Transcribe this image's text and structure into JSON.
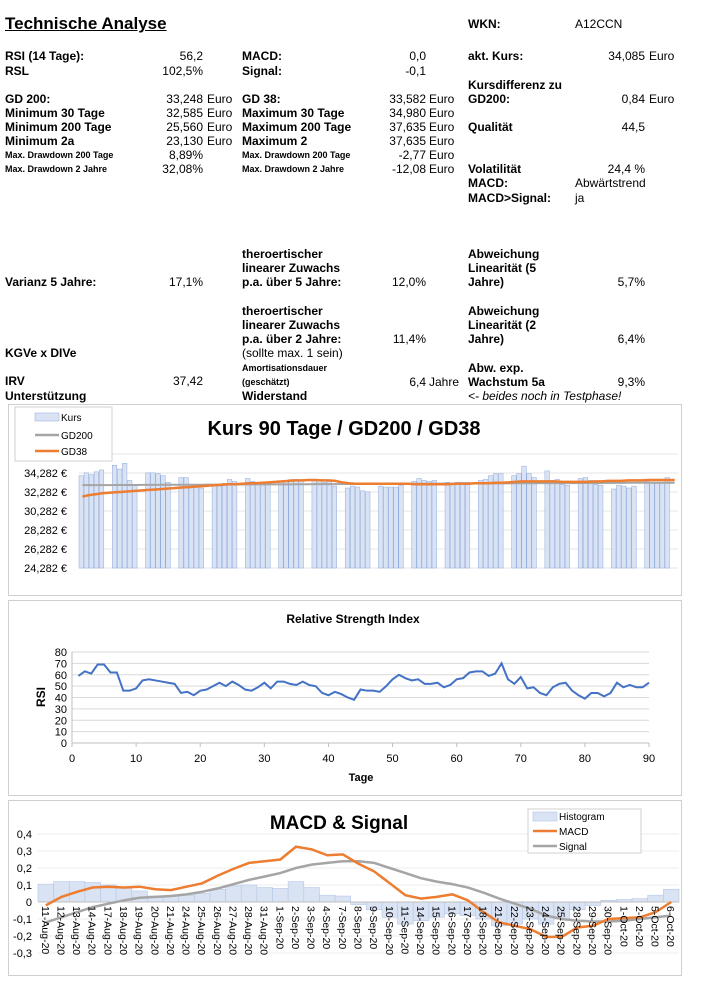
{
  "title": "Technische Analyse",
  "fields": [
    {
      "col": 1,
      "label": "RSI (14 Tage):",
      "value": "56,2"
    },
    {
      "col": 1,
      "label": "RSL",
      "value": "102,5%"
    },
    {
      "col": 1,
      "label": "GD 200:",
      "value": "33,248",
      "unit": "Euro"
    },
    {
      "col": 1,
      "label": "Minimum 30 Tage",
      "value": "32,585",
      "unit": "Euro"
    },
    {
      "col": 1,
      "label": "Minimum 200 Tage",
      "value": "25,560",
      "unit": "Euro"
    },
    {
      "col": 1,
      "label": "Minimum 2a",
      "value": "23,130",
      "unit": "Euro"
    },
    {
      "col": 1,
      "label": "Max. Drawdown 200 Tage",
      "value": "8,89%",
      "small": true
    },
    {
      "col": 1,
      "label": "Max. Drawdown 2 Jahre",
      "value": "32,08%",
      "small": true
    },
    {
      "col": 1,
      "label": "Varianz 5 Jahre:",
      "value": "17,1%"
    },
    {
      "col": 1,
      "label": "KGVe x DIVe",
      "value": ""
    },
    {
      "col": 1,
      "label": "IRV",
      "value": "37,42"
    },
    {
      "col": 1,
      "label": "Unterstützung",
      "value": ""
    },
    {
      "col": 2,
      "label": "MACD:",
      "value": "0,0"
    },
    {
      "col": 2,
      "label": "Signal:",
      "value": "-0,1"
    },
    {
      "col": 2,
      "label": "GD 38:",
      "value": "33,582",
      "unit": "Euro"
    },
    {
      "col": 2,
      "label": "Maximum 30 Tage",
      "value": "34,980",
      "unit": "Euro"
    },
    {
      "col": 2,
      "label": "Maximum 200 Tage",
      "value": "37,635",
      "unit": "Euro"
    },
    {
      "col": 2,
      "label": "Maximum 2",
      "value": "37,635",
      "unit": "Euro"
    },
    {
      "col": 2,
      "label": "Max. Drawdown 200 Tage",
      "value": "-2,77",
      "unit": "Euro",
      "small": true
    },
    {
      "col": 2,
      "label": "Max. Drawdown 2 Jahre",
      "value": "-12,08",
      "unit": "Euro",
      "small": true
    },
    {
      "col": 2,
      "label": "theroertischer\nlinearer Zuwachs\np.a. über 5 Jahre:",
      "value": "12,0%"
    },
    {
      "col": 2,
      "label": "theroertischer\nlinearer Zuwachs\np.a. über 2 Jahre:",
      "value": "11,4%"
    },
    {
      "col": 2,
      "label": "(sollte max. 1 sein)",
      "value": "",
      "plain": true
    },
    {
      "col": 2,
      "label": "Amortisationsdauer\n(geschätzt)",
      "value": "6,4",
      "unit": "Jahre",
      "small": true
    },
    {
      "col": 2,
      "label": "Widerstand",
      "value": ""
    },
    {
      "col": 3,
      "label": "WKN:",
      "value": "A12CCN",
      "left": true
    },
    {
      "col": 3,
      "label": "akt. Kurs:",
      "value": "34,085",
      "unit": "Euro"
    },
    {
      "col": 3,
      "label": "Kursdifferenz zu\nGD200:",
      "value": "0,84",
      "unit": "Euro"
    },
    {
      "col": 3,
      "label": "Qualität",
      "value": "44,5"
    },
    {
      "col": 3,
      "label": "Volatilität",
      "value": "24,4 %"
    },
    {
      "col": 3,
      "label": "MACD:",
      "value": "Abwärtstrend",
      "left": true
    },
    {
      "col": 3,
      "label": "MACD>Signal:",
      "value": "ja",
      "left": true
    },
    {
      "col": 3,
      "label": "Abweichung\nLinearität (5\nJahre)",
      "value": "5,7%"
    },
    {
      "col": 3,
      "label": "Abweichung\nLinearität (2\nJahre)",
      "value": "6,4%"
    },
    {
      "col": 3,
      "label": "Abw. exp.\nWachstum 5a",
      "value": "9,3%"
    },
    {
      "col": 3,
      "label": "<- beides noch in Testphase!",
      "value": "",
      "italic": true
    }
  ],
  "chart_data": [
    {
      "type": "bar+line",
      "title": "Kurs 90 Tage / GD200 / GD38",
      "ylim": [
        24.282,
        36.282
      ],
      "yticks": [
        "24,282 €",
        "26,282 €",
        "28,282 €",
        "30,282 €",
        "32,282 €",
        "34,282 €"
      ],
      "legend": "top-left",
      "grid": true,
      "colors": {
        "Kurs": "#dae3f3",
        "GD200": "#a5a5a5",
        "GD38": "#ed7d31"
      },
      "series": [
        {
          "name": "Kurs",
          "type": "bar",
          "values": [
            34.0,
            34.3,
            34.1,
            34.4,
            34.6,
            35.1,
            34.7,
            35.3,
            33.5,
            33.0,
            34.3,
            34.3,
            34.2,
            34.0,
            33.3,
            33.8,
            33.8,
            32.9,
            33.0,
            32.7,
            32.9,
            32.9,
            33.2,
            33.6,
            33.4,
            33.7,
            33.4,
            33.2,
            33.0,
            33.3,
            33.3,
            33.4,
            33.6,
            33.6,
            33.5,
            33.5,
            33.6,
            33.3,
            33.4,
            32.9,
            32.7,
            32.9,
            32.8,
            32.4,
            32.3,
            32.9,
            32.8,
            32.8,
            32.8,
            33.0,
            33.4,
            33.7,
            33.5,
            33.4,
            33.5,
            33.3,
            33.2,
            33.3,
            33.3,
            33.3,
            33.5,
            33.6,
            34.0,
            34.2,
            34.2,
            34.0,
            34.2,
            35.0,
            34.2,
            33.8,
            34.5,
            33.5,
            33.6,
            33.1,
            33.0,
            33.7,
            33.8,
            33.5,
            33.1,
            33.0,
            32.6,
            33.0,
            32.9,
            32.7,
            32.9,
            33.4,
            33.3,
            33.3,
            33.3,
            33.8
          ]
        },
        {
          "name": "GD200",
          "type": "line",
          "values": [
            33.0,
            33.0,
            33.01,
            33.01,
            33.01,
            33.02,
            33.02,
            33.02,
            33.02,
            33.03,
            33.03,
            33.03,
            33.04,
            33.04,
            33.04,
            33.05,
            33.05,
            33.05,
            33.05,
            33.06,
            33.06,
            33.06,
            33.07,
            33.07,
            33.07,
            33.08,
            33.08,
            33.08,
            33.08,
            33.09,
            33.09,
            33.09,
            33.1,
            33.1,
            33.1,
            33.11,
            33.11,
            33.11,
            33.11,
            33.12,
            33.12,
            33.12,
            33.13,
            33.13,
            33.13,
            33.14,
            33.14,
            33.14,
            33.14,
            33.15,
            33.15,
            33.15,
            33.16,
            33.16,
            33.16,
            33.17,
            33.17,
            33.17,
            33.17,
            33.18,
            33.18,
            33.18,
            33.19,
            33.19,
            33.19,
            33.2,
            33.2,
            33.2,
            33.2,
            33.21,
            33.21,
            33.21,
            33.22,
            33.22,
            33.22,
            33.23,
            33.23,
            33.23,
            33.23,
            33.24,
            33.24,
            33.24,
            33.25,
            33.25,
            33.25,
            33.25,
            33.25,
            33.25,
            33.25,
            33.25
          ]
        },
        {
          "name": "GD38",
          "type": "line",
          "values": [
            31.8,
            31.95,
            32.05,
            32.15,
            32.2,
            32.25,
            32.3,
            32.35,
            32.4,
            32.45,
            32.5,
            32.55,
            32.6,
            32.65,
            32.7,
            32.75,
            32.8,
            32.85,
            32.9,
            32.95,
            33.0,
            33.05,
            33.1,
            33.1,
            33.15,
            33.2,
            33.2,
            33.25,
            33.3,
            33.35,
            33.4,
            33.45,
            33.5,
            33.5,
            33.55,
            33.55,
            33.5,
            33.5,
            33.45,
            33.3,
            33.2,
            33.15,
            33.15,
            33.15,
            33.15,
            33.15,
            33.15,
            33.15,
            33.15,
            33.15,
            33.1,
            33.1,
            33.1,
            33.1,
            33.1,
            33.1,
            33.15,
            33.15,
            33.15,
            33.2,
            33.2,
            33.2,
            33.25,
            33.25,
            33.3,
            33.35,
            33.4,
            33.4,
            33.4,
            33.4,
            33.4,
            33.4,
            33.35,
            33.35,
            33.35,
            33.35,
            33.35,
            33.4,
            33.4,
            33.45,
            33.45,
            33.45,
            33.5,
            33.5,
            33.5,
            33.55,
            33.55,
            33.55,
            33.55,
            33.55
          ]
        }
      ]
    },
    {
      "type": "line",
      "title": "Relative Strength Index",
      "xlabel": "Tage",
      "ylabel": "RSI",
      "xlim": [
        0,
        90
      ],
      "ylim": [
        0,
        80
      ],
      "xticks": [
        0,
        10,
        20,
        30,
        40,
        50,
        60,
        70,
        80,
        90
      ],
      "yticks": [
        0,
        10,
        20,
        30,
        40,
        50,
        60,
        70,
        80
      ],
      "grid": true,
      "color": "#4472c4",
      "x_start": 1,
      "values": [
        59,
        63,
        61,
        69,
        69,
        62,
        62,
        46,
        46,
        48,
        55,
        56,
        55,
        54,
        53,
        52,
        44,
        45,
        42,
        46,
        47,
        50,
        53,
        50,
        54,
        51,
        47,
        46,
        49,
        53,
        48,
        54,
        54,
        52,
        51,
        54,
        51,
        50,
        44,
        42,
        45,
        43,
        40,
        38,
        47,
        46,
        46,
        45,
        50,
        56,
        60,
        57,
        55,
        56,
        52,
        52,
        53,
        49,
        51,
        56,
        57,
        62,
        63,
        63,
        59,
        61,
        70,
        56,
        52,
        58,
        48,
        49,
        44,
        42,
        49,
        52,
        53,
        46,
        42,
        39,
        44,
        44,
        41,
        44,
        53,
        49,
        51,
        49,
        49,
        53
      ]
    },
    {
      "type": "bar+line",
      "title": "MACD & Signal",
      "ylim": [
        -0.3,
        0.4
      ],
      "yticks": [
        "-0,3",
        "-0,2",
        "-0,1",
        "0",
        "0,1",
        "0,2",
        "0,3",
        "0,4"
      ],
      "legend": "top-right",
      "grid": true,
      "colors": {
        "Histogram": "#dae3f3",
        "MACD": "#ed7d31",
        "Signal": "#a5a5a5"
      },
      "categories": [
        "11-Aug-20",
        "12-Aug-20",
        "13-Aug-20",
        "14-Aug-20",
        "17-Aug-20",
        "18-Aug-20",
        "19-Aug-20",
        "20-Aug-20",
        "21-Aug-20",
        "24-Aug-20",
        "25-Aug-20",
        "26-Aug-20",
        "27-Aug-20",
        "28-Aug-20",
        "31-Aug-20",
        "1-Sep-20",
        "2-Sep-20",
        "3-Sep-20",
        "4-Sep-20",
        "7-Sep-20",
        "8-Sep-20",
        "9-Sep-20",
        "10-Sep-20",
        "11-Sep-20",
        "14-Sep-20",
        "15-Sep-20",
        "16-Sep-20",
        "17-Sep-20",
        "18-Sep-20",
        "21-Sep-20",
        "22-Sep-20",
        "23-Sep-20",
        "24-Sep-20",
        "25-Sep-20",
        "28-Sep-20",
        "29-Sep-20",
        "30-Sep-20",
        "1-Oct-20",
        "2-Oct-20",
        "5-Oct-20",
        "6-Oct-20"
      ],
      "series": [
        {
          "name": "Histogram",
          "type": "bar",
          "values": [
            0.105,
            0.12,
            0.12,
            0.115,
            0.1,
            0.085,
            0.065,
            0.035,
            0.035,
            0.04,
            0.05,
            0.075,
            0.095,
            0.1,
            0.085,
            0.08,
            0.12,
            0.085,
            0.04,
            0.035,
            -0.015,
            -0.045,
            -0.09,
            -0.13,
            -0.11,
            -0.09,
            -0.07,
            -0.08,
            -0.1,
            -0.14,
            -0.13,
            -0.1,
            -0.13,
            -0.1,
            -0.045,
            -0.02,
            0.01,
            0.015,
            0.02,
            0.04,
            0.075
          ]
        },
        {
          "name": "MACD",
          "type": "line",
          "values": [
            -0.02,
            0.03,
            0.06,
            0.085,
            0.09,
            0.085,
            0.09,
            0.075,
            0.07,
            0.09,
            0.11,
            0.155,
            0.195,
            0.23,
            0.24,
            0.25,
            0.325,
            0.31,
            0.275,
            0.28,
            0.225,
            0.18,
            0.11,
            0.04,
            0.02,
            0.03,
            0.045,
            0.01,
            -0.06,
            -0.12,
            -0.14,
            -0.16,
            -0.205,
            -0.205,
            -0.15,
            -0.14,
            -0.1,
            -0.095,
            -0.09,
            -0.06,
            0.0
          ]
        },
        {
          "name": "Signal",
          "type": "line",
          "values": [
            -0.12,
            -0.09,
            -0.06,
            -0.03,
            -0.01,
            0.01,
            0.025,
            0.03,
            0.035,
            0.045,
            0.06,
            0.08,
            0.105,
            0.13,
            0.15,
            0.17,
            0.2,
            0.22,
            0.23,
            0.24,
            0.24,
            0.23,
            0.2,
            0.17,
            0.14,
            0.12,
            0.105,
            0.085,
            0.055,
            0.02,
            -0.01,
            -0.04,
            -0.08,
            -0.1,
            -0.11,
            -0.115,
            -0.115,
            -0.11,
            -0.1,
            -0.09,
            -0.08
          ]
        }
      ]
    }
  ]
}
